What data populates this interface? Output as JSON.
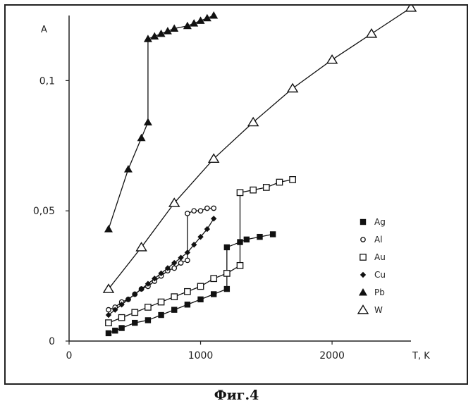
{
  "caption": "Фиг.4",
  "chart_data": {
    "type": "line",
    "xlabel": "T, K",
    "ylabel": "A",
    "xlim": [
      0,
      2600
    ],
    "ylim": [
      0,
      0.125
    ],
    "x_tick_values": [
      0,
      1000,
      2000
    ],
    "x_tick_labels": [
      "0",
      "1000",
      "2000"
    ],
    "y_tick_values": [
      0,
      0.05,
      0.1
    ],
    "y_tick_labels": [
      "0",
      "0,05",
      "0,1"
    ],
    "grid": false,
    "legend_position": "bottom-right",
    "series": [
      {
        "name": "Ag",
        "marker": "square-filled",
        "points": [
          [
            300,
            0.003
          ],
          [
            350,
            0.004
          ],
          [
            400,
            0.005
          ],
          [
            500,
            0.007
          ],
          [
            600,
            0.008
          ],
          [
            700,
            0.01
          ],
          [
            800,
            0.012
          ],
          [
            900,
            0.014
          ],
          [
            1000,
            0.016
          ],
          [
            1100,
            0.018
          ],
          [
            1200,
            0.02
          ],
          [
            1200,
            0.036
          ],
          [
            1300,
            0.038
          ],
          [
            1350,
            0.039
          ],
          [
            1450,
            0.04
          ],
          [
            1550,
            0.041
          ]
        ]
      },
      {
        "name": "Al",
        "marker": "circle-small",
        "points": [
          [
            300,
            0.012
          ],
          [
            350,
            0.013
          ],
          [
            400,
            0.015
          ],
          [
            450,
            0.016
          ],
          [
            500,
            0.018
          ],
          [
            550,
            0.02
          ],
          [
            600,
            0.021
          ],
          [
            650,
            0.023
          ],
          [
            700,
            0.025
          ],
          [
            750,
            0.027
          ],
          [
            800,
            0.028
          ],
          [
            850,
            0.03
          ],
          [
            900,
            0.031
          ],
          [
            900,
            0.049
          ],
          [
            950,
            0.05
          ],
          [
            1000,
            0.05
          ],
          [
            1050,
            0.051
          ],
          [
            1100,
            0.051
          ]
        ]
      },
      {
        "name": "Au",
        "marker": "square-open",
        "points": [
          [
            300,
            0.007
          ],
          [
            400,
            0.009
          ],
          [
            500,
            0.011
          ],
          [
            600,
            0.013
          ],
          [
            700,
            0.015
          ],
          [
            800,
            0.017
          ],
          [
            900,
            0.019
          ],
          [
            1000,
            0.021
          ],
          [
            1100,
            0.024
          ],
          [
            1200,
            0.026
          ],
          [
            1300,
            0.029
          ],
          [
            1300,
            0.057
          ],
          [
            1400,
            0.058
          ],
          [
            1500,
            0.059
          ],
          [
            1600,
            0.061
          ],
          [
            1700,
            0.062
          ]
        ]
      },
      {
        "name": "Cu",
        "marker": "diamond-filled",
        "points": [
          [
            300,
            0.01
          ],
          [
            350,
            0.012
          ],
          [
            400,
            0.014
          ],
          [
            450,
            0.016
          ],
          [
            500,
            0.018
          ],
          [
            550,
            0.02
          ],
          [
            600,
            0.022
          ],
          [
            650,
            0.024
          ],
          [
            700,
            0.026
          ],
          [
            750,
            0.028
          ],
          [
            800,
            0.03
          ],
          [
            850,
            0.032
          ],
          [
            900,
            0.034
          ],
          [
            950,
            0.037
          ],
          [
            1000,
            0.04
          ],
          [
            1050,
            0.043
          ],
          [
            1100,
            0.047
          ]
        ]
      },
      {
        "name": "Pb",
        "marker": "triangle-filled",
        "points": [
          [
            300,
            0.043
          ],
          [
            450,
            0.066
          ],
          [
            550,
            0.078
          ],
          [
            600,
            0.084
          ],
          [
            600,
            0.116
          ],
          [
            650,
            0.117
          ],
          [
            700,
            0.118
          ],
          [
            750,
            0.119
          ],
          [
            800,
            0.12
          ],
          [
            900,
            0.121
          ],
          [
            950,
            0.122
          ],
          [
            1000,
            0.123
          ],
          [
            1050,
            0.124
          ],
          [
            1100,
            0.125
          ]
        ]
      },
      {
        "name": "W",
        "marker": "triangle-open",
        "points": [
          [
            300,
            0.02
          ],
          [
            550,
            0.036
          ],
          [
            800,
            0.053
          ],
          [
            1100,
            0.07
          ],
          [
            1400,
            0.084
          ],
          [
            1700,
            0.097
          ],
          [
            2000,
            0.108
          ],
          [
            2300,
            0.118
          ],
          [
            2600,
            0.128
          ]
        ]
      }
    ]
  }
}
